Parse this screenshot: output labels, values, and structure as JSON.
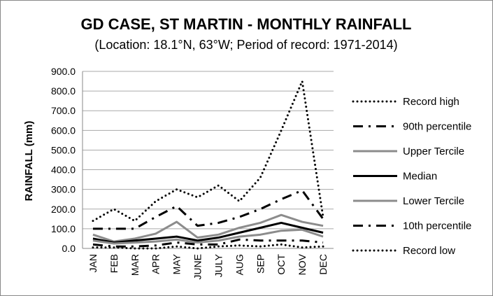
{
  "chart_data": {
    "type": "line",
    "title": "GD CASE, ST MARTIN - MONTHLY RAINFALL",
    "subtitle": "(Location: 18.1°N, 63°W; Period of record: 1971-2014)",
    "xlabel": "",
    "ylabel": "RAINFALL (mm)",
    "ylim": [
      0,
      900
    ],
    "yticks": [
      "0.0",
      "100.0",
      "200.0",
      "300.0",
      "400.0",
      "500.0",
      "600.0",
      "700.0",
      "800.0",
      "900.0"
    ],
    "categories": [
      "JAN",
      "FEB",
      "MAR",
      "APR",
      "MAY",
      "JUNE",
      "JULY",
      "AUG",
      "SEP",
      "OCT",
      "NOV",
      "DEC"
    ],
    "grid": true,
    "legend": "right",
    "series": [
      {
        "name": "Record high",
        "color": "#000000",
        "style": "dotted",
        "values": [
          140,
          200,
          140,
          240,
          300,
          260,
          320,
          240,
          360,
          600,
          850,
          160
        ]
      },
      {
        "name": "90th percentile",
        "color": "#000000",
        "style": "dashdot",
        "values": [
          100,
          100,
          100,
          160,
          215,
          115,
          130,
          160,
          200,
          250,
          295,
          150
        ]
      },
      {
        "name": "Upper Tercile",
        "color": "#8c8c8c",
        "style": "solid",
        "values": [
          70,
          35,
          50,
          75,
          135,
          55,
          70,
          105,
          130,
          170,
          135,
          115
        ]
      },
      {
        "name": "Median",
        "color": "#000000",
        "style": "solid",
        "values": [
          50,
          30,
          40,
          50,
          60,
          40,
          55,
          80,
          105,
          130,
          105,
          80
        ]
      },
      {
        "name": "Lower Tercile",
        "color": "#8c8c8c",
        "style": "solid",
        "values": [
          40,
          25,
          30,
          35,
          45,
          30,
          40,
          60,
          70,
          90,
          95,
          60
        ]
      },
      {
        "name": "10th percentile",
        "color": "#000000",
        "style": "dashdot",
        "values": [
          20,
          10,
          10,
          15,
          30,
          20,
          20,
          45,
          40,
          40,
          40,
          30
        ]
      },
      {
        "name": "Record low",
        "color": "#000000",
        "style": "dotted",
        "values": [
          5,
          5,
          0,
          0,
          10,
          0,
          10,
          15,
          10,
          20,
          5,
          10
        ]
      }
    ]
  }
}
